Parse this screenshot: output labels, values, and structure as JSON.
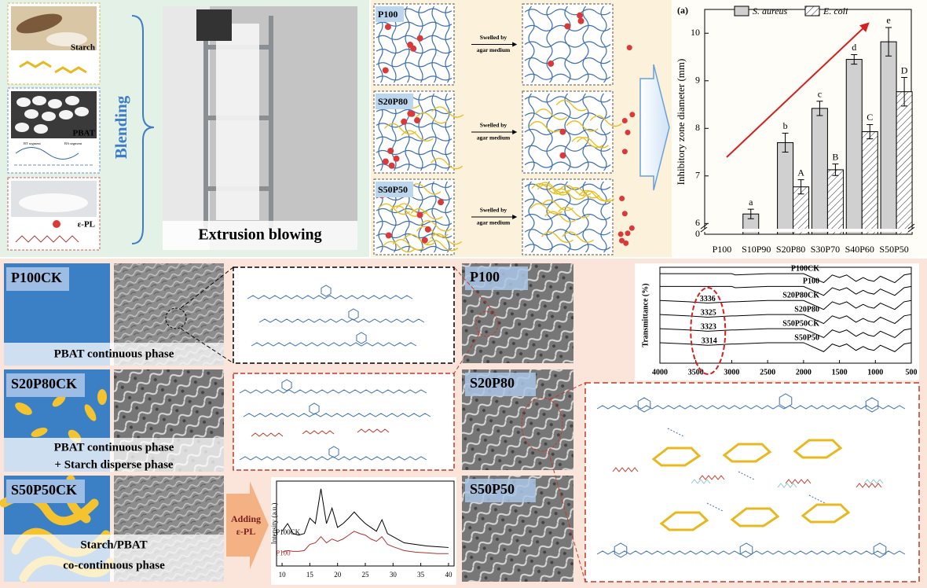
{
  "materials": {
    "starch": "Starch",
    "pbat": "PBAT",
    "pbat_segments": [
      "BT segment",
      "BA segment"
    ],
    "epl": "ε-PL"
  },
  "process": {
    "blending": "Blending",
    "extrusion": "Extrusion blowing"
  },
  "release": {
    "samples": [
      "P100",
      "S20P80",
      "S50P50"
    ],
    "arrow_label": [
      "Swelled by",
      "agar medium"
    ]
  },
  "morphology": {
    "samples": [
      "P100CK",
      "S20P80CK",
      "S50P50CK"
    ],
    "captions": [
      [
        "PBAT continuous phase"
      ],
      [
        "PBAT continuous phase",
        "+ Starch disperse phase"
      ],
      [
        "Starch/PBAT",
        "co-continuous phase"
      ]
    ]
  },
  "sem": [
    "P100",
    "S20P80",
    "S50P50"
  ],
  "adding": [
    "Adding",
    "ε-PL"
  ],
  "chart_data": [
    {
      "type": "bar",
      "title": "(a)",
      "y_label": "Inhibitory zone diameter (mm)",
      "categories": [
        "P100",
        "S10P90",
        "S20P80",
        "S30P70",
        "S40P60",
        "S50P50"
      ],
      "series": [
        {
          "name": "S. aureus",
          "color": "#d0d0d0",
          "values": [
            null,
            6.2,
            7.7,
            8.42,
            9.45,
            9.82
          ],
          "errors": [
            null,
            0.1,
            0.2,
            0.15,
            0.1,
            0.3
          ],
          "annotations": [
            null,
            "a",
            "b",
            "c",
            "d",
            "e"
          ]
        },
        {
          "name": "E. coli",
          "color": "#ffffff",
          "hatch": true,
          "values": [
            null,
            null,
            6.77,
            7.13,
            7.93,
            8.77
          ],
          "errors": [
            null,
            null,
            0.15,
            0.12,
            0.15,
            0.3
          ],
          "annotations": [
            null,
            null,
            "A",
            "B",
            "C",
            "D"
          ]
        }
      ],
      "ylim": [
        0,
        10.5
      ],
      "axis_break": 5.84,
      "yticks": [
        0,
        6,
        7,
        8,
        9,
        10
      ],
      "legend": "top"
    },
    {
      "type": "line",
      "y_label": "Transmittance (%)",
      "x": [
        4000,
        3600,
        3336,
        3000,
        2950,
        2500,
        2000,
        1720,
        1600,
        1500,
        1400,
        1270,
        1170,
        1100,
        1020,
        930,
        730,
        600,
        500
      ],
      "xlim": [
        4000,
        500
      ],
      "xticks": [
        4000,
        3500,
        3000,
        2500,
        2000,
        1500,
        1000,
        500
      ],
      "ylim": [
        25,
        100
      ],
      "series": [
        {
          "name": "P100CK",
          "color": "#000000",
          "values": [
            95,
            95,
            95,
            95,
            94,
            95,
            95,
            88,
            94,
            92,
            94,
            89,
            92,
            90,
            89,
            93,
            88,
            94,
            95
          ]
        },
        {
          "name": "P100",
          "color": "#000000",
          "values": [
            85,
            85,
            85,
            85,
            84,
            85,
            85,
            78,
            84,
            82,
            84,
            79,
            82,
            80,
            79,
            83,
            78,
            84,
            85
          ]
        },
        {
          "name": "S20P80CK",
          "color": "#000000",
          "values": [
            74,
            73,
            72,
            73,
            73,
            74,
            74,
            67,
            73,
            71,
            73,
            68,
            71,
            69,
            68,
            72,
            67,
            73,
            74
          ]
        },
        {
          "name": "S20P80",
          "color": "#000000",
          "values": [
            63,
            62,
            61,
            62,
            62,
            63,
            63,
            56,
            62,
            60,
            62,
            57,
            60,
            58,
            57,
            61,
            56,
            62,
            63
          ]
        },
        {
          "name": "S50P50CK",
          "color": "#000000",
          "values": [
            52,
            51,
            50,
            51,
            51,
            52,
            52,
            45,
            51,
            49,
            51,
            46,
            49,
            47,
            46,
            50,
            45,
            51,
            52
          ]
        },
        {
          "name": "S50P50",
          "color": "#000000",
          "values": [
            41,
            40,
            39,
            40,
            40,
            41,
            41,
            34,
            40,
            38,
            40,
            35,
            38,
            36,
            35,
            39,
            34,
            40,
            41
          ]
        }
      ],
      "peak_labels": [
        3336,
        3325,
        3323,
        3314
      ]
    },
    {
      "type": "line",
      "y_label": "Intensity (a.u.)",
      "x": [
        10,
        11,
        12,
        13,
        14,
        15,
        16,
        17,
        18,
        19,
        20,
        21,
        22,
        23,
        24,
        25,
        26,
        27,
        28,
        29,
        30,
        32,
        34,
        36,
        38,
        40
      ],
      "xlim": [
        9,
        41
      ],
      "xticks": [
        10,
        15,
        20,
        25,
        30,
        35,
        40
      ],
      "ylim": [
        0,
        110
      ],
      "series": [
        {
          "name": "P100CK",
          "color": "#000000",
          "values": [
            45,
            55,
            42,
            40,
            42,
            62,
            55,
            100,
            55,
            75,
            50,
            55,
            62,
            70,
            62,
            55,
            50,
            45,
            60,
            42,
            38,
            30,
            28,
            26,
            25,
            24
          ]
        },
        {
          "name": "P100",
          "color": "#b03030",
          "values": [
            18,
            20,
            19,
            19,
            20,
            28,
            30,
            38,
            30,
            35,
            32,
            35,
            40,
            45,
            42,
            40,
            35,
            32,
            38,
            28,
            25,
            20,
            18,
            17,
            16,
            16
          ]
        }
      ]
    }
  ]
}
